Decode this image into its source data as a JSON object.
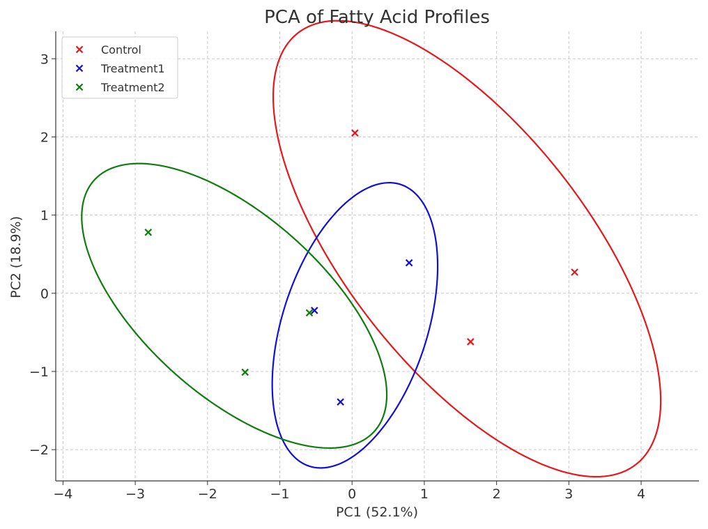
{
  "chart_data": {
    "type": "scatter",
    "title": "PCA of Fatty Acid Profiles",
    "xlabel": "PC1 (52.1%)",
    "ylabel": "PC2 (18.9%)",
    "xlim": [
      -4.1,
      4.8
    ],
    "ylim": [
      -2.4,
      3.35
    ],
    "xticks": [
      -4,
      -3,
      -2,
      -1,
      0,
      1,
      2,
      3,
      4
    ],
    "yticks": [
      -2,
      -1,
      0,
      1,
      2,
      3
    ],
    "xtick_labels": [
      "−4",
      "−3",
      "−2",
      "−1",
      "0",
      "1",
      "2",
      "3",
      "4"
    ],
    "ytick_labels": [
      "−2",
      "−1",
      "0",
      "1",
      "2",
      "3"
    ],
    "grid": true,
    "legend_position": "top-left",
    "marker": "x",
    "series": [
      {
        "name": "Control",
        "color": "#e8171b",
        "points": [
          [
            0.04,
            2.05
          ],
          [
            3.08,
            0.27
          ],
          [
            1.64,
            -0.62
          ]
        ],
        "ellipse": {
          "center": [
            1.59,
            0.57
          ],
          "width": 7.24,
          "height": 3.22,
          "angle_deg": -48.6
        }
      },
      {
        "name": "Treatment1",
        "color": "#1010d8",
        "points": [
          [
            0.79,
            0.39
          ],
          [
            -0.52,
            -0.22
          ],
          [
            -0.16,
            -1.39
          ]
        ],
        "ellipse": {
          "center": [
            0.04,
            -0.41
          ],
          "width": 3.82,
          "height": 1.99,
          "angle_deg": 69.7
        }
      },
      {
        "name": "Treatment2",
        "color": "#0d7e0d",
        "points": [
          [
            -2.82,
            0.78
          ],
          [
            -0.59,
            -0.25
          ],
          [
            -1.48,
            -1.01
          ]
        ],
        "ellipse": {
          "center": [
            -1.63,
            -0.16
          ],
          "width": 5.04,
          "height": 2.38,
          "angle_deg": -38.3
        }
      }
    ]
  }
}
